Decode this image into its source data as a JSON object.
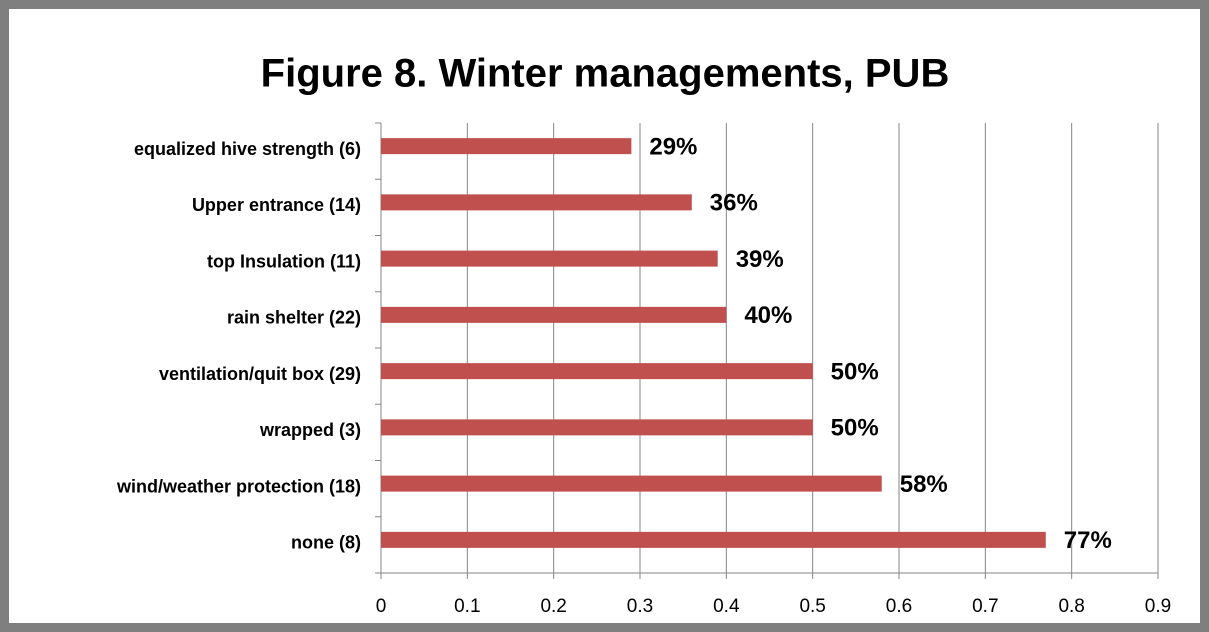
{
  "chart_data": {
    "type": "bar",
    "orientation": "horizontal",
    "title": "Figure 8. Winter managements, PUB",
    "categories": [
      "equalized hive strength (6)",
      "Upper entrance (14)",
      "top Insulation (11)",
      "rain shelter (22)",
      "ventilation/quit box (29)",
      "wrapped (3)",
      "wind/weather protection (18)",
      "none (8)"
    ],
    "values": [
      0.29,
      0.36,
      0.39,
      0.4,
      0.5,
      0.5,
      0.58,
      0.77
    ],
    "value_labels": [
      "29%",
      "36%",
      "39%",
      "40%",
      "50%",
      "50%",
      "58%",
      "77%"
    ],
    "color": "#c0504d",
    "xlim": [
      0,
      0.9
    ],
    "xticks": [
      0,
      0.1,
      0.2,
      0.3,
      0.4,
      0.5,
      0.6,
      0.7,
      0.8,
      0.9
    ],
    "grid": true
  }
}
